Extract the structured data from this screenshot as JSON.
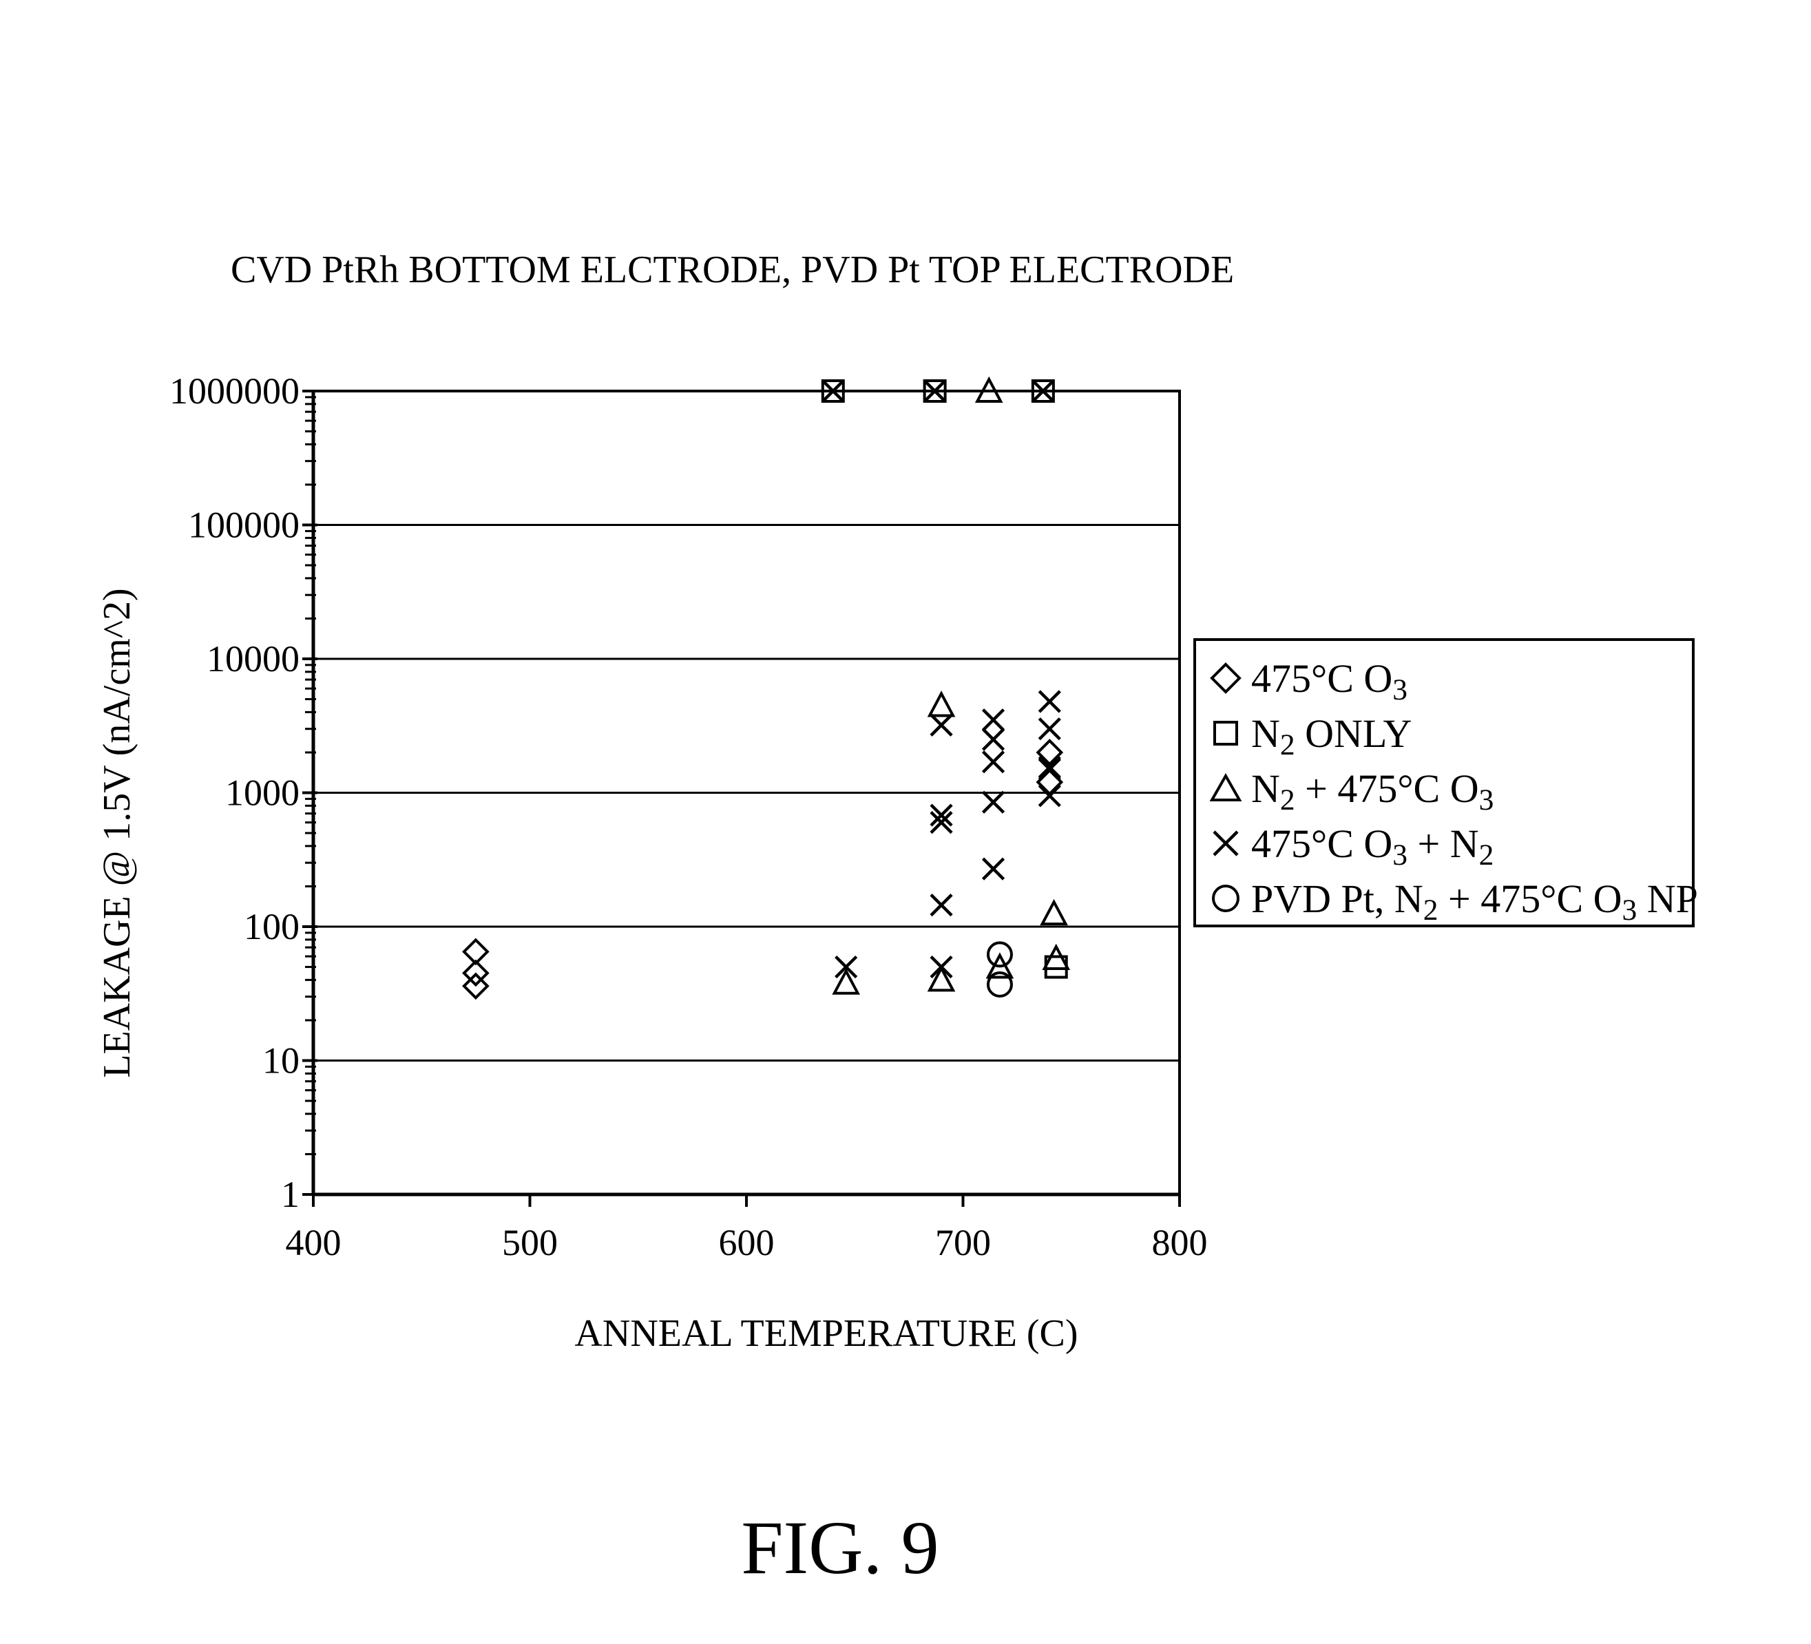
{
  "chart_data": {
    "type": "scatter",
    "title": "CVD PtRh BOTTOM ELCTRODE, PVD Pt TOP ELECTRODE",
    "xlabel": "ANNEAL TEMPERATURE (C)",
    "ylabel": "LEAKAGE @ 1.5V (nA/cm^2)",
    "xlim": [
      400,
      800
    ],
    "ylim": [
      1,
      1000000
    ],
    "y_scale": "log",
    "x_ticks": [
      "400",
      "500",
      "600",
      "700",
      "800"
    ],
    "y_ticks": [
      "1",
      "10",
      "100",
      "1000",
      "10000",
      "100000",
      "1000000"
    ],
    "grid": "horizontal",
    "legend_position": "right",
    "series": [
      {
        "name": "475°C O3",
        "marker": "diamond",
        "points": [
          [
            475,
            65
          ],
          [
            475,
            45
          ],
          [
            475,
            36
          ],
          [
            740,
            2000
          ],
          [
            740,
            1200
          ]
        ]
      },
      {
        "name": "N2 ONLY",
        "marker": "square",
        "points": [
          [
            640,
            1000000
          ],
          [
            687,
            1000000
          ],
          [
            737,
            1000000
          ],
          [
            743,
            50
          ]
        ]
      },
      {
        "name": "N2 + 475°C O3",
        "marker": "triangle",
        "points": [
          [
            646,
            38
          ],
          [
            690,
            40
          ],
          [
            690,
            4500
          ],
          [
            712,
            1000000
          ],
          [
            742,
            125
          ],
          [
            717,
            50
          ],
          [
            743,
            58
          ]
        ]
      },
      {
        "name": "475°C O3 + N2",
        "marker": "x",
        "points": [
          [
            640,
            1000000
          ],
          [
            687,
            1000000
          ],
          [
            737,
            1000000
          ],
          [
            646,
            50
          ],
          [
            690,
            50
          ],
          [
            690,
            145
          ],
          [
            690,
            600
          ],
          [
            690,
            680
          ],
          [
            690,
            3200
          ],
          [
            714,
            270
          ],
          [
            714,
            850
          ],
          [
            714,
            1700
          ],
          [
            714,
            2500
          ],
          [
            714,
            3500
          ],
          [
            740,
            950
          ],
          [
            740,
            1500
          ],
          [
            740,
            1550
          ],
          [
            740,
            3000
          ],
          [
            740,
            4800
          ]
        ]
      },
      {
        "name": "PVD Pt, N2 + 475°C O3 NP",
        "marker": "circle",
        "points": [
          [
            717,
            62
          ],
          [
            717,
            37
          ]
        ]
      }
    ]
  },
  "legend": {
    "items": [
      {
        "pre": "475°C O",
        "sub1": "3",
        "mid": "",
        "sub2": "",
        "post": ""
      },
      {
        "pre": "N",
        "sub1": "2",
        "mid": " ONLY",
        "sub2": "",
        "post": ""
      },
      {
        "pre": "N",
        "sub1": "2",
        "mid": " + 475°C O",
        "sub2": "3",
        "post": ""
      },
      {
        "pre": "475°C O",
        "sub1": "3",
        "mid": " + N",
        "sub2": "2",
        "post": ""
      },
      {
        "pre": "PVD Pt, N",
        "sub1": "2",
        "mid": " + 475°C O",
        "sub2": "3",
        "post": " NP"
      }
    ]
  },
  "figure": {
    "label": "FIG. 9"
  }
}
